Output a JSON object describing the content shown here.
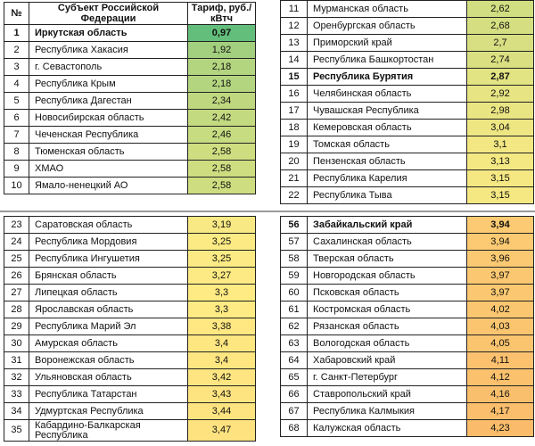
{
  "header": {
    "num": "№",
    "name": "Субъект Российской Федерации",
    "value": "Тариф, руб./кВтч"
  },
  "color_scale": {
    "low": "#63be7b",
    "mid": "#ffeb84",
    "high": "#f8a860",
    "low_value": 0.97,
    "mid_value": 3.3,
    "high_value": 4.6
  },
  "tables": [
    {
      "rows": [
        {
          "n": "1",
          "name": "Иркутская область",
          "value": "0,97",
          "bold": true
        },
        {
          "n": "2",
          "name": "Республика Хакасия",
          "value": "1,92"
        },
        {
          "n": "3",
          "name": "г. Севастополь",
          "value": "2,18"
        },
        {
          "n": "4",
          "name": "Республика Крым",
          "value": "2,18"
        },
        {
          "n": "5",
          "name": "Республика Дагестан",
          "value": "2,34"
        },
        {
          "n": "6",
          "name": "Новосибирская область",
          "value": "2,42"
        },
        {
          "n": "7",
          "name": "Чеченская Республика",
          "value": "2,46"
        },
        {
          "n": "8",
          "name": "Тюменская область",
          "value": "2,58"
        },
        {
          "n": "9",
          "name": "ХМАО",
          "value": "2,58"
        },
        {
          "n": "10",
          "name": "Ямало-ненецкий АО",
          "value": "2,58"
        }
      ]
    },
    {
      "rows": [
        {
          "n": "11",
          "name": "Мурманская область",
          "value": "2,62"
        },
        {
          "n": "12",
          "name": "Оренбургская область",
          "value": "2,68"
        },
        {
          "n": "13",
          "name": "Приморский край",
          "value": "2,7"
        },
        {
          "n": "14",
          "name": "Республика Башкортостан",
          "value": "2,74"
        },
        {
          "n": "15",
          "name": "Республика Бурятия",
          "value": "2,87",
          "bold": true
        },
        {
          "n": "16",
          "name": "Челябинская область",
          "value": "2,92"
        },
        {
          "n": "17",
          "name": "Чувашская Республика",
          "value": "2,98"
        },
        {
          "n": "18",
          "name": "Кемеровская область",
          "value": "3,04"
        },
        {
          "n": "19",
          "name": "Томская область",
          "value": "3,1"
        },
        {
          "n": "20",
          "name": "Пензенская область",
          "value": "3,13"
        },
        {
          "n": "21",
          "name": "Республика Карелия",
          "value": "3,15"
        },
        {
          "n": "22",
          "name": "Республика Тыва",
          "value": "3,15"
        }
      ]
    },
    {
      "rows": [
        {
          "n": "23",
          "name": "Саратовская область",
          "value": "3,19"
        },
        {
          "n": "24",
          "name": "Республика Мордовия",
          "value": "3,25"
        },
        {
          "n": "25",
          "name": "Республика Ингушетия",
          "value": "3,25"
        },
        {
          "n": "26",
          "name": "Брянская область",
          "value": "3,27"
        },
        {
          "n": "27",
          "name": "Липецкая область",
          "value": "3,3"
        },
        {
          "n": "28",
          "name": "Ярославская область",
          "value": "3,3"
        },
        {
          "n": "29",
          "name": "Республика Марий Эл",
          "value": "3,38"
        },
        {
          "n": "30",
          "name": "Амурская область",
          "value": "3,4"
        },
        {
          "n": "31",
          "name": "Воронежская область",
          "value": "3,4"
        },
        {
          "n": "32",
          "name": "Ульяновская область",
          "value": "3,42"
        },
        {
          "n": "33",
          "name": "Республика Татарстан",
          "value": "3,43"
        },
        {
          "n": "34",
          "name": "Удмуртская Республика",
          "value": "3,44"
        },
        {
          "n": "35",
          "name": "Кабардино-Балкарская Республика",
          "value": "3,47",
          "tall": true
        }
      ]
    },
    {
      "rows": [
        {
          "n": "56",
          "name": "Забайкальский край",
          "value": "3,94",
          "bold": true
        },
        {
          "n": "57",
          "name": "Сахалинская область",
          "value": "3,94"
        },
        {
          "n": "58",
          "name": "Тверская область",
          "value": "3,96"
        },
        {
          "n": "59",
          "name": "Новгородская область",
          "value": "3,97"
        },
        {
          "n": "60",
          "name": "Псковская область",
          "value": "3,97"
        },
        {
          "n": "61",
          "name": "Костромская область",
          "value": "4,02"
        },
        {
          "n": "62",
          "name": "Рязанская область",
          "value": "4,03"
        },
        {
          "n": "63",
          "name": "Вологодская область",
          "value": "4,05"
        },
        {
          "n": "64",
          "name": "Хабаровский край",
          "value": "4,11"
        },
        {
          "n": "65",
          "name": "г. Санкт-Петербург",
          "value": "4,12"
        },
        {
          "n": "66",
          "name": "Ставропольский край",
          "value": "4,16"
        },
        {
          "n": "67",
          "name": "Республика Калмыкия",
          "value": "4,17"
        },
        {
          "n": "68",
          "name": "Калужская область",
          "value": "4,23"
        }
      ]
    }
  ]
}
